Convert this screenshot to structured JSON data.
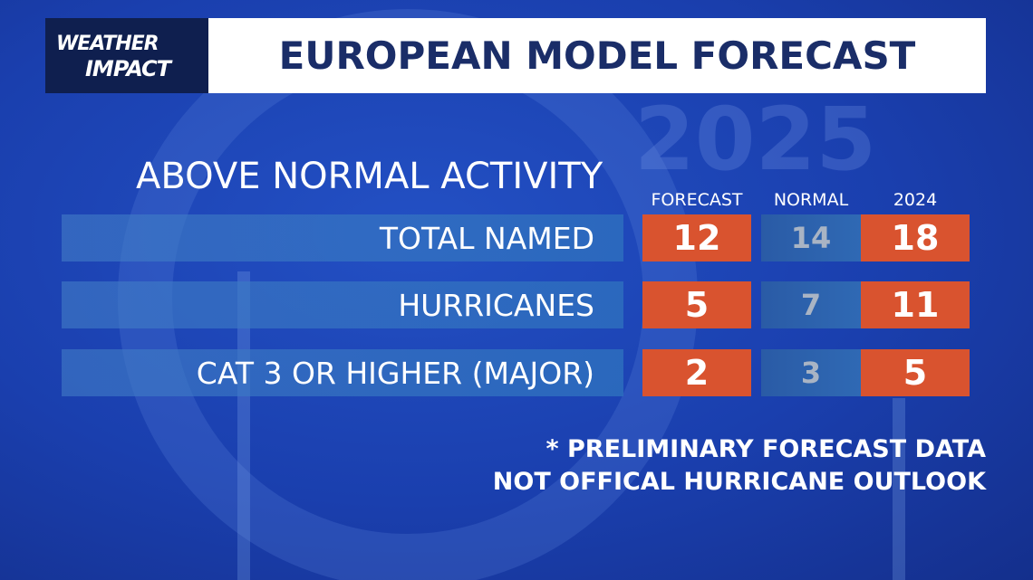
{
  "logo": {
    "line1": "WEATHER",
    "line2": "IMPACT"
  },
  "header": {
    "title": "EUROPEAN MODEL FORECAST"
  },
  "watermark": "2025",
  "subtitle": "ABOVE NORMAL ACTIVITY",
  "table": {
    "columns": [
      "FORECAST",
      "NORMAL",
      "2024"
    ],
    "rows": [
      {
        "label": "TOTAL NAMED",
        "values": [
          12,
          14,
          18
        ]
      },
      {
        "label": "HURRICANES",
        "values": [
          5,
          7,
          11
        ]
      },
      {
        "label": "CAT 3 OR HIGHER (MAJOR)",
        "values": [
          2,
          3,
          5
        ]
      }
    ]
  },
  "footnote": [
    "* PRELIMINARY FORECAST DATA",
    "NOT OFFICAL HURRICANE OUTLOOK"
  ]
}
